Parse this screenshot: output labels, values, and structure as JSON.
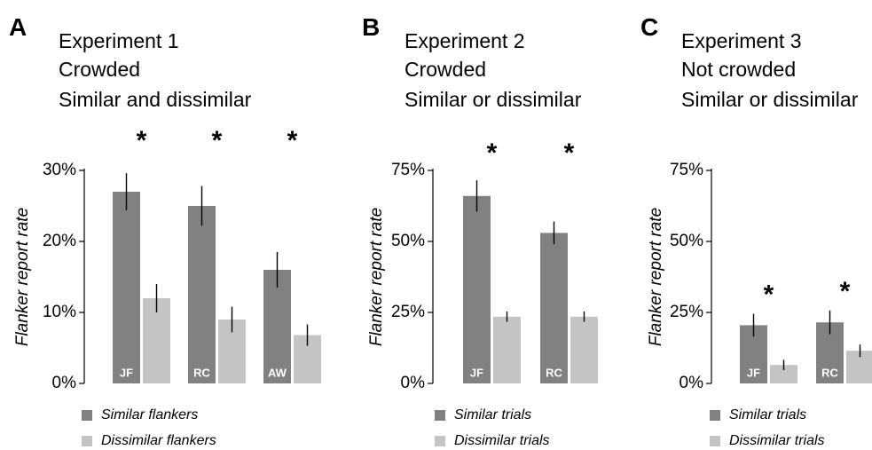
{
  "colors": {
    "similar": "#818181",
    "dissimilar": "#c4c4c4",
    "axis": "#000000",
    "text": "#000000",
    "bar_label": "#ffffff"
  },
  "chart_data": [
    {
      "type": "bar",
      "panel": "A",
      "title_lines": [
        "Experiment 1",
        "Crowded",
        "Similar and dissimilar"
      ],
      "ylabel": "Flanker report rate",
      "ylim": [
        0,
        30
      ],
      "yticks": [
        0,
        10,
        20,
        30
      ],
      "ytick_labels": [
        "0%",
        "10%",
        "20%",
        "30%"
      ],
      "categories": [
        "JF",
        "RC",
        "AW"
      ],
      "series": [
        {
          "name": "Similar flankers",
          "values": [
            27,
            25,
            16
          ],
          "errors": [
            2.6,
            2.8,
            2.5
          ]
        },
        {
          "name": "Dissimilar flankers",
          "values": [
            12,
            9,
            6.8
          ],
          "errors": [
            2.0,
            1.8,
            1.5
          ]
        }
      ],
      "significance": [
        "*",
        "*",
        "*"
      ],
      "legend": [
        "Similar flankers",
        "Dissimilar flankers"
      ]
    },
    {
      "type": "bar",
      "panel": "B",
      "title_lines": [
        "Experiment 2",
        "Crowded",
        "Similar or dissimilar"
      ],
      "ylabel": "Flanker report rate",
      "ylim": [
        0,
        75
      ],
      "yticks": [
        0,
        25,
        50,
        75
      ],
      "ytick_labels": [
        "0%",
        "25%",
        "50%",
        "75%"
      ],
      "categories": [
        "JF",
        "RC"
      ],
      "series": [
        {
          "name": "Similar trials",
          "values": [
            66,
            53
          ],
          "errors": [
            5.5,
            4.0
          ]
        },
        {
          "name": "Dissimilar trials",
          "values": [
            23.5,
            23.5
          ],
          "errors": [
            1.8,
            1.8
          ]
        }
      ],
      "significance": [
        "*",
        "*"
      ],
      "legend": [
        "Similar trials",
        "Dissimilar trials"
      ]
    },
    {
      "type": "bar",
      "panel": "C",
      "title_lines": [
        "Experiment 3",
        "Not crowded",
        "Similar or dissimilar"
      ],
      "ylabel": "Flanker report rate",
      "ylim": [
        0,
        75
      ],
      "yticks": [
        0,
        25,
        50,
        75
      ],
      "ytick_labels": [
        "0%",
        "25%",
        "50%",
        "75%"
      ],
      "categories": [
        "JF",
        "RC"
      ],
      "series": [
        {
          "name": "Similar trials",
          "values": [
            20.5,
            21.5
          ],
          "errors": [
            4.0,
            4.2
          ]
        },
        {
          "name": "Dissimilar trials",
          "values": [
            6.5,
            11.5
          ],
          "errors": [
            1.8,
            2.2
          ]
        }
      ],
      "significance": [
        "*",
        "*"
      ],
      "legend": [
        "Similar trials",
        "Dissimilar trials"
      ]
    }
  ]
}
